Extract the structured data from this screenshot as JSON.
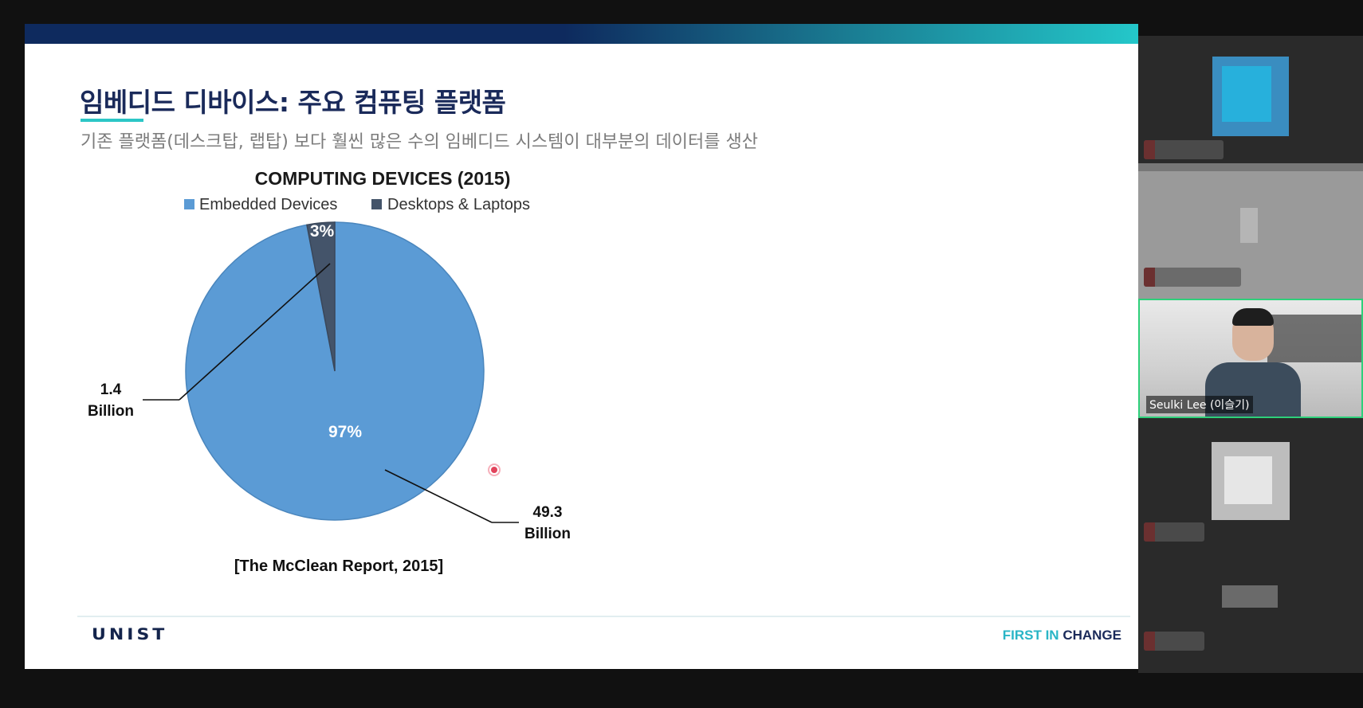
{
  "slide": {
    "title": "임베디드 디바이스: 주요 컴퓨팅 플랫폼",
    "subtitle": "기존 플랫폼(데스크탑, 랩탑) 보다 훨씬 많은 수의 임베디드 시스템이 대부분의 데이터를 생산",
    "source": "[The McClean Report, 2015]",
    "footer_logo": "UNIST",
    "tagline_first": "FIRST IN",
    "tagline_second": "CHANGE"
  },
  "chart_data": {
    "type": "pie",
    "title": "COMPUTING DEVICES (2015)",
    "categories": [
      "Embedded Devices",
      "Desktops & Laptops"
    ],
    "values": [
      97,
      3
    ],
    "value_labels": [
      "97%",
      "3%"
    ],
    "annotations": [
      {
        "line1": "49.3",
        "line2": "Billion"
      },
      {
        "line1": "1.4",
        "line2": "Billion"
      }
    ],
    "colors": [
      "#5b9bd5",
      "#44546a"
    ],
    "legend_position": "top"
  },
  "participants": {
    "speaker_name": "Seulki Lee (이슬기)"
  }
}
